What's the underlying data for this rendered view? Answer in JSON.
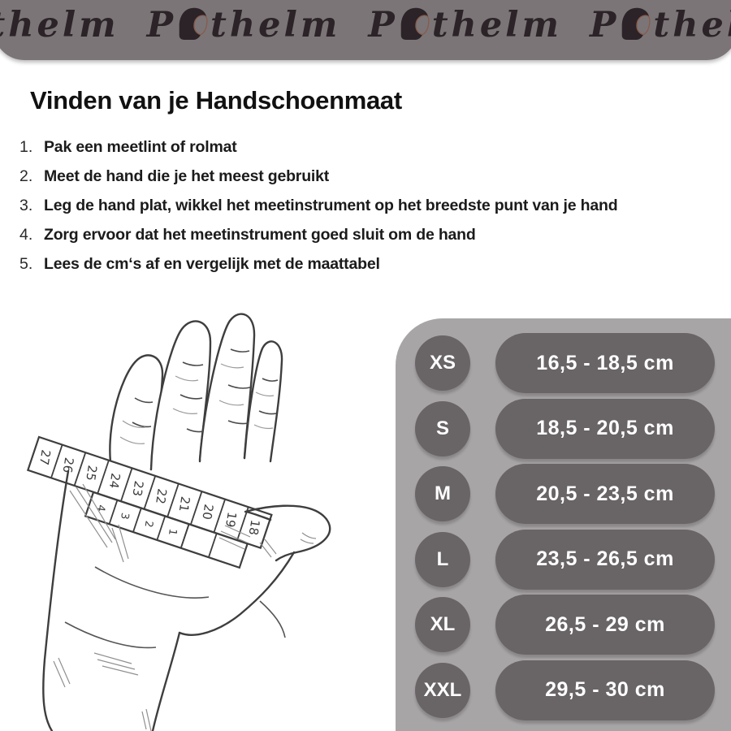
{
  "banner": {
    "prefix": "P",
    "suffix": "thelm",
    "brand": "Pothelm",
    "repeat": 4,
    "helmet_icon": "helmet-icon"
  },
  "title": "Vinden van je Handschoenmaat",
  "steps": [
    {
      "num": "1.",
      "text": "Pak een meetlint of rolmat"
    },
    {
      "num": "2.",
      "text": "Meet de hand die je het meest gebruikt"
    },
    {
      "num": "3.",
      "text": "Leg de hand plat, wikkel het meetinstrument op het breedste punt van je hand"
    },
    {
      "num": "4.",
      "text": "Zorg ervoor dat het meetinstrument goed sluit om de hand"
    },
    {
      "num": "5.",
      "text": "Lees de cm‘s af en vergelijk met de maattabel"
    }
  ],
  "size_table": {
    "rows": [
      {
        "size": "XS",
        "range": "16,5 - 18,5 cm"
      },
      {
        "size": "S",
        "range": "18,5 - 20,5 cm"
      },
      {
        "size": "M",
        "range": "20,5 - 23,5 cm"
      },
      {
        "size": "L",
        "range": "23,5 - 26,5 cm"
      },
      {
        "size": "XL",
        "range": "26,5 - 29 cm"
      },
      {
        "size": "XXL",
        "range": "29,5 - 30 cm"
      }
    ]
  },
  "tape": {
    "back_numbers": [
      "27",
      "26",
      "25",
      "24",
      "23",
      "22",
      "21",
      "20",
      "19",
      "18"
    ],
    "front_numbers": [
      "4",
      "3",
      "2",
      "1"
    ]
  },
  "colors": {
    "banner_bg": "#7b7577",
    "banner_text": "#2b2327",
    "visor_line": "#8a5a4a",
    "panel_bg": "#a8a5a7",
    "bubble_bg": "#696466",
    "text_dark": "#111111"
  }
}
